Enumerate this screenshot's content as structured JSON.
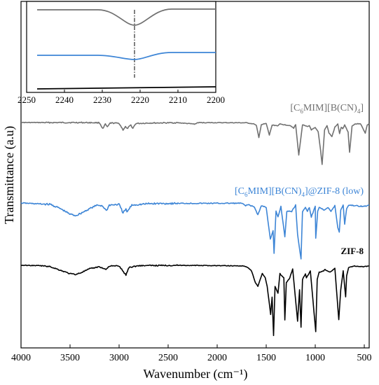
{
  "chart_data": {
    "type": "line",
    "xlabel": "Wavenumber (cm⁻¹)",
    "ylabel": "Transmittance (a.u)",
    "xlim": [
      4000,
      450
    ],
    "x_reversed": true,
    "x_ticks": [
      "4000",
      "3500",
      "3000",
      "2500",
      "2000",
      "1500",
      "1000",
      "500"
    ],
    "y_ticks_shown": false,
    "grid": false,
    "series": [
      {
        "name": "[C6MIM][B(CN)4]",
        "label_parts": [
          "[C",
          "6",
          "MIM][B(CN)",
          "4",
          "]"
        ],
        "color": "#707070",
        "label_bold": false,
        "points": [
          [
            4000,
            0
          ],
          [
            3700,
            0.2
          ],
          [
            3400,
            0.1
          ],
          [
            3200,
            0.5
          ],
          [
            3165,
            12
          ],
          [
            3140,
            3
          ],
          [
            3120,
            9
          ],
          [
            3090,
            1
          ],
          [
            3000,
            1.5
          ],
          [
            2960,
            14
          ],
          [
            2935,
            8
          ],
          [
            2920,
            12
          ],
          [
            2880,
            5
          ],
          [
            2860,
            11
          ],
          [
            2830,
            2
          ],
          [
            2700,
            1
          ],
          [
            2400,
            0.5
          ],
          [
            2224,
            3
          ],
          [
            2200,
            0.3
          ],
          [
            1900,
            0.4
          ],
          [
            1700,
            0.6
          ],
          [
            1620,
            3
          ],
          [
            1600,
            6
          ],
          [
            1575,
            29
          ],
          [
            1550,
            4
          ],
          [
            1500,
            2
          ],
          [
            1468,
            24
          ],
          [
            1440,
            5
          ],
          [
            1380,
            6
          ],
          [
            1360,
            3
          ],
          [
            1250,
            6
          ],
          [
            1220,
            11
          ],
          [
            1200,
            4
          ],
          [
            1168,
            62
          ],
          [
            1130,
            4
          ],
          [
            1110,
            6
          ],
          [
            1080,
            8
          ],
          [
            1060,
            6
          ],
          [
            1040,
            14
          ],
          [
            1000,
            10
          ],
          [
            970,
            18
          ],
          [
            945,
            54
          ],
          [
            930,
            80
          ],
          [
            905,
            14
          ],
          [
            880,
            6
          ],
          [
            860,
            20
          ],
          [
            830,
            27
          ],
          [
            800,
            9
          ],
          [
            770,
            3
          ],
          [
            752,
            21
          ],
          [
            735,
            9
          ],
          [
            720,
            12
          ],
          [
            700,
            5
          ],
          [
            665,
            18
          ],
          [
            650,
            57
          ],
          [
            625,
            7
          ],
          [
            600,
            3
          ],
          [
            540,
            2
          ],
          [
            490,
            20
          ],
          [
            470,
            5
          ],
          [
            450,
            2
          ]
        ]
      },
      {
        "name": "[C6MIM][B(CN)4]@ZIF-8 (low)",
        "label_parts": [
          "[C",
          "6",
          "MIM][B(CN)",
          "4",
          "]@ZIF-8 (low)"
        ],
        "color": "#3d85d6",
        "label_bold": false,
        "points": [
          [
            4000,
            0
          ],
          [
            3700,
            2
          ],
          [
            3600,
            8
          ],
          [
            3500,
            16
          ],
          [
            3440,
            18
          ],
          [
            3380,
            14
          ],
          [
            3300,
            8
          ],
          [
            3220,
            3
          ],
          [
            3170,
            4
          ],
          [
            3130,
            11
          ],
          [
            3100,
            3
          ],
          [
            3000,
            2
          ],
          [
            2960,
            14
          ],
          [
            2930,
            9
          ],
          [
            2920,
            13
          ],
          [
            2870,
            3
          ],
          [
            2700,
            1
          ],
          [
            2400,
            0.5
          ],
          [
            2200,
            0.5
          ],
          [
            1900,
            0.4
          ],
          [
            1750,
            0.4
          ],
          [
            1710,
            4
          ],
          [
            1690,
            2
          ],
          [
            1620,
            6
          ],
          [
            1585,
            17
          ],
          [
            1550,
            4
          ],
          [
            1500,
            6
          ],
          [
            1458,
            52
          ],
          [
            1430,
            40
          ],
          [
            1420,
            72
          ],
          [
            1400,
            12
          ],
          [
            1380,
            20
          ],
          [
            1350,
            5
          ],
          [
            1310,
            48
          ],
          [
            1290,
            12
          ],
          [
            1240,
            12
          ],
          [
            1200,
            3
          ],
          [
            1180,
            45
          ],
          [
            1145,
            80
          ],
          [
            1130,
            12
          ],
          [
            1100,
            6
          ],
          [
            1080,
            12
          ],
          [
            1060,
            6
          ],
          [
            1040,
            20
          ],
          [
            1000,
            5
          ],
          [
            995,
            50
          ],
          [
            975,
            12
          ],
          [
            960,
            6
          ],
          [
            910,
            10
          ],
          [
            870,
            6
          ],
          [
            840,
            12
          ],
          [
            800,
            4
          ],
          [
            770,
            35
          ],
          [
            755,
            42
          ],
          [
            740,
            10
          ],
          [
            715,
            3
          ],
          [
            700,
            30
          ],
          [
            680,
            8
          ],
          [
            660,
            3
          ],
          [
            500,
            5
          ],
          [
            450,
            3
          ]
        ]
      },
      {
        "name": "ZIF-8",
        "label_parts": [
          "ZIF-8"
        ],
        "color": "#000000",
        "label_bold": true,
        "points": [
          [
            4000,
            0
          ],
          [
            3800,
            0.5
          ],
          [
            3700,
            2
          ],
          [
            3600,
            7
          ],
          [
            3500,
            12
          ],
          [
            3440,
            13
          ],
          [
            3380,
            10
          ],
          [
            3300,
            5
          ],
          [
            3200,
            2
          ],
          [
            3135,
            6
          ],
          [
            3100,
            1
          ],
          [
            3000,
            1
          ],
          [
            2930,
            14
          ],
          [
            2900,
            3
          ],
          [
            2800,
            0.5
          ],
          [
            2400,
            0
          ],
          [
            2000,
            0.5
          ],
          [
            1750,
            0.8
          ],
          [
            1700,
            2
          ],
          [
            1650,
            8
          ],
          [
            1610,
            25
          ],
          [
            1585,
            30
          ],
          [
            1540,
            12
          ],
          [
            1510,
            18
          ],
          [
            1490,
            30
          ],
          [
            1455,
            70
          ],
          [
            1440,
            45
          ],
          [
            1425,
            100
          ],
          [
            1410,
            30
          ],
          [
            1380,
            40
          ],
          [
            1360,
            12
          ],
          [
            1320,
            18
          ],
          [
            1310,
            78
          ],
          [
            1295,
            25
          ],
          [
            1260,
            18
          ],
          [
            1230,
            5
          ],
          [
            1180,
            80
          ],
          [
            1160,
            35
          ],
          [
            1145,
            88
          ],
          [
            1130,
            20
          ],
          [
            1100,
            12
          ],
          [
            1090,
            18
          ],
          [
            1050,
            8
          ],
          [
            995,
            95
          ],
          [
            980,
            20
          ],
          [
            960,
            10
          ],
          [
            915,
            8
          ],
          [
            900,
            6
          ],
          [
            850,
            10
          ],
          [
            800,
            4
          ],
          [
            760,
            78
          ],
          [
            740,
            35
          ],
          [
            715,
            8
          ],
          [
            690,
            45
          ],
          [
            680,
            15
          ],
          [
            660,
            3
          ],
          [
            600,
            1
          ],
          [
            500,
            2
          ],
          [
            450,
            1
          ]
        ]
      }
    ],
    "inset": {
      "xlim": [
        2250,
        2200
      ],
      "x_ticks": [
        "2250",
        "2240",
        "2230",
        "2220",
        "2210",
        "2200"
      ],
      "marker_x": 2222.5,
      "marker_style": "dash-dot vertical line"
    }
  }
}
